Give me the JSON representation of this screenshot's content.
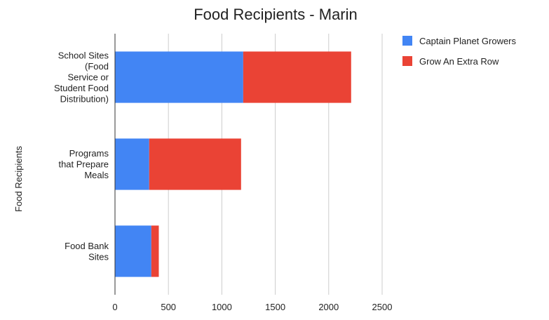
{
  "chart_data": {
    "type": "bar",
    "orientation": "horizontal",
    "stacked": true,
    "title": "Food Recipients - Marin",
    "xlabel": "",
    "ylabel": "Food Recipients",
    "categories": [
      [
        "School Sites",
        "(Food",
        "Service or",
        "Student Food",
        "Distribution)"
      ],
      [
        "Programs",
        "that Prepare",
        "Meals"
      ],
      [
        "Food Bank",
        "Sites"
      ]
    ],
    "series": [
      {
        "name": "Captain Planet Growers",
        "color": "#4285f4",
        "values": [
          1200,
          320,
          340
        ]
      },
      {
        "name": "Grow An Extra Row",
        "color": "#ea4335",
        "values": [
          1010,
          860,
          70
        ]
      }
    ],
    "xlim": [
      0,
      2500
    ],
    "xticks": [
      "0",
      "500",
      "1000",
      "1500",
      "2000",
      "2500"
    ],
    "grid": true,
    "legend_position": "top-right"
  }
}
